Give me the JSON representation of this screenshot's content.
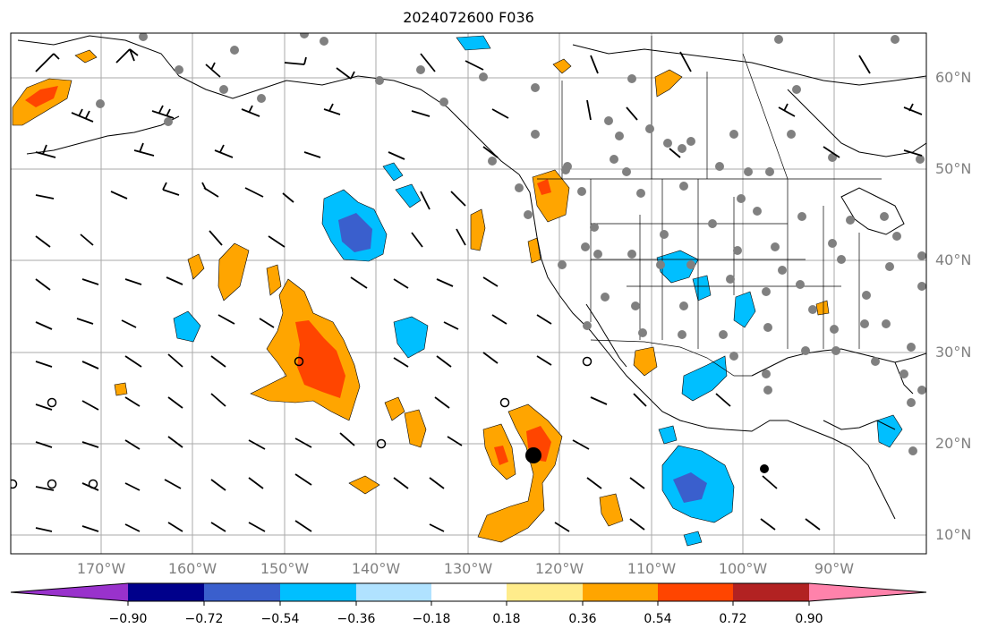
{
  "title": "2024072600 F036",
  "lat_labels": [
    "60°N",
    "50°N",
    "40°N",
    "30°N",
    "20°N",
    "10°N"
  ],
  "lon_labels": [
    "170°W",
    "160°W",
    "150°W",
    "140°W",
    "130°W",
    "120°W",
    "110°W",
    "100°W",
    "90°W"
  ],
  "colorbar": {
    "ticks": [
      "−0.90",
      "−0.72",
      "−0.54",
      "−0.36",
      "−0.18",
      "0.18",
      "0.36",
      "0.54",
      "0.72",
      "0.90"
    ],
    "colors": [
      "#9932cc",
      "#00008b",
      "#3a5fcd",
      "#00bfff",
      "#b0e2ff",
      "#ffffff",
      "#ffec8b",
      "#ffa500",
      "#ff4500",
      "#b22222",
      "#ff82ab"
    ]
  },
  "colors": {
    "grid": "#aaaaaa",
    "coast": "#000000",
    "station": "#808080"
  }
}
